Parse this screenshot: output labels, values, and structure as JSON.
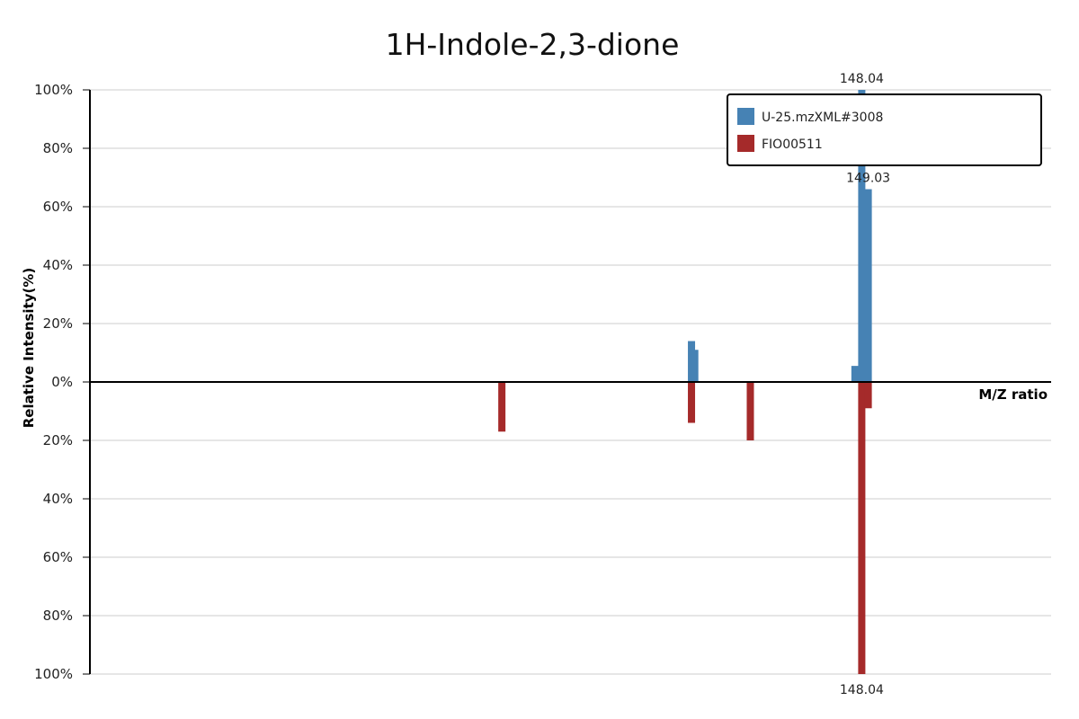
{
  "chart_data": {
    "type": "bar",
    "title": "1H-Indole-2,3-dione",
    "xlabel": "M/Z ratio",
    "ylabel": "Relative Intensity(%)",
    "xlim": [
      30,
      177
    ],
    "ylim_top": [
      0,
      100
    ],
    "ylim_bottom": [
      0,
      100
    ],
    "y_tick_labels": [
      "100%",
      "80%",
      "60%",
      "40%",
      "20%",
      "0%",
      "20%",
      "40%",
      "60%",
      "80%",
      "100%"
    ],
    "grid": true,
    "legend_position": "top-right",
    "series": [
      {
        "name": "U-25.mzXML#3008",
        "color": "#4682b4",
        "direction": "up",
        "points": [
          {
            "mz": 122.0,
            "intensity": 14
          },
          {
            "mz": 122.5,
            "intensity": 11
          },
          {
            "mz": 147.0,
            "intensity": 5.5
          },
          {
            "mz": 148.04,
            "intensity": 100,
            "label": "148.04"
          },
          {
            "mz": 149.03,
            "intensity": 66,
            "label": "149.03"
          }
        ]
      },
      {
        "name": "FIO00511",
        "color": "#a52a2a",
        "direction": "down",
        "points": [
          {
            "mz": 93.0,
            "intensity": 17
          },
          {
            "mz": 122.0,
            "intensity": 14
          },
          {
            "mz": 131.0,
            "intensity": 20
          },
          {
            "mz": 148.04,
            "intensity": 100,
            "label": "148.04"
          },
          {
            "mz": 149.03,
            "intensity": 9
          }
        ]
      }
    ]
  }
}
